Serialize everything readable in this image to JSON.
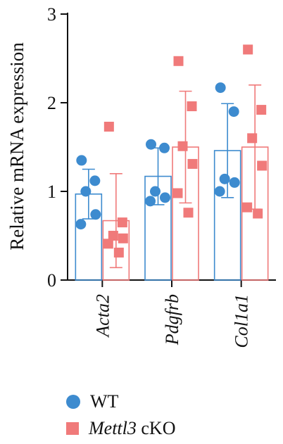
{
  "chart_data": {
    "type": "bar",
    "ylabel": "Relative mRNA expression",
    "ylim": [
      0,
      3
    ],
    "yticks": [
      "0",
      "1",
      "2",
      "3"
    ],
    "categories": [
      "Acta2",
      "Pdgfrb",
      "Col1a1"
    ],
    "colors": {
      "WT": "#3d8bcf",
      "cKO": "#f07a7a"
    },
    "series": [
      {
        "name": "WT",
        "means": [
          0.97,
          1.17,
          1.46
        ],
        "errors": [
          0.28,
          0.32,
          0.53
        ],
        "points": [
          [
            1.35,
            1.12,
            1.0,
            0.74,
            0.63
          ],
          [
            1.53,
            1.49,
            1.0,
            0.93,
            0.89
          ],
          [
            2.17,
            1.9,
            1.14,
            1.1,
            1.0
          ]
        ]
      },
      {
        "name": "Mettl3 cKO",
        "means": [
          0.67,
          1.5,
          1.5
        ],
        "errors": [
          0.53,
          0.63,
          0.7
        ],
        "points": [
          [
            1.73,
            0.65,
            0.5,
            0.47,
            0.41,
            0.31
          ],
          [
            2.47,
            1.96,
            1.51,
            1.31,
            0.98,
            0.76
          ],
          [
            2.6,
            1.92,
            1.6,
            1.29,
            0.82,
            0.75
          ]
        ]
      }
    ],
    "legend": {
      "wt": "WT",
      "cko_gene": "Mettl3",
      "cko_suffix": " cKO"
    }
  }
}
